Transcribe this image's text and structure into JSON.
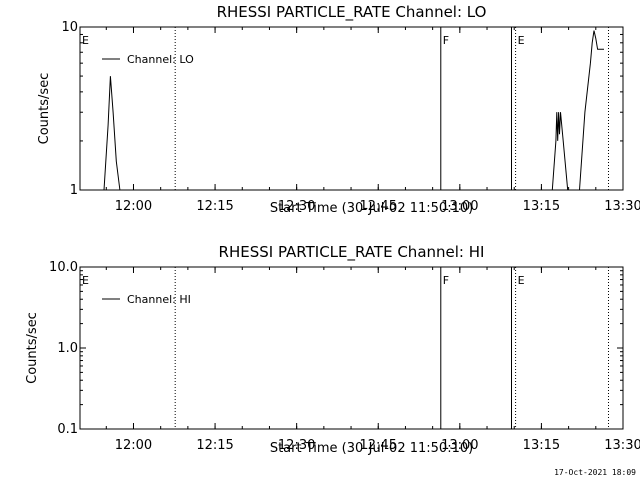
{
  "timestamp": "17-Oct-2021 18:09",
  "chart_data": [
    {
      "type": "line",
      "title": "RHESSI PARTICLE_RATE Channel: LO",
      "xlabel": "Start Time (30-Jul-02 11:50:10)",
      "ylabel": "Counts/sec",
      "yscale": "log",
      "ylim": [
        1,
        10
      ],
      "ytick_values": [
        1,
        10
      ],
      "ytick_labels": [
        "1",
        "10"
      ],
      "xlim": [
        "11:50:10",
        "13:30:00"
      ],
      "xtick_labels": [
        "12:00",
        "12:15",
        "12:30",
        "12:45",
        "13:00",
        "13:15",
        "13:30"
      ],
      "legend": "top-left",
      "series": [
        {
          "name": "Channel: LO",
          "x": [
            "11:54:35",
            "11:55:20",
            "11:55:45",
            "11:56:15",
            "11:56:50",
            "11:57:30",
            "13:17:00",
            "13:17:40",
            "13:17:50",
            "13:18:00",
            "13:18:10",
            "13:18:20",
            "13:18:30",
            "13:19:00",
            "13:19:50",
            "13:22:00",
            "13:23:00",
            "13:24:00",
            "13:24:20",
            "13:24:40",
            "13:25:00",
            "13:25:20",
            "13:26:30"
          ],
          "y": [
            1.0,
            2.5,
            5.0,
            3.0,
            1.5,
            1.0,
            1.0,
            2.0,
            3.0,
            2.0,
            3.0,
            2.2,
            3.0,
            2.0,
            1.0,
            1.0,
            3.0,
            6.0,
            8.0,
            9.5,
            8.5,
            7.3,
            7.3
          ]
        }
      ],
      "markers": [
        {
          "label": "E",
          "time": "11:50:10",
          "style": "dotted"
        },
        {
          "label": "",
          "time": "12:07:40",
          "style": "dotted"
        },
        {
          "label": "F",
          "time": "12:56:30",
          "style": "solid"
        },
        {
          "label": "",
          "time": "13:09:30",
          "style": "solid"
        },
        {
          "label": "E",
          "time": "13:10:15",
          "style": "dotted"
        },
        {
          "label": "",
          "time": "13:27:20",
          "style": "dotted"
        }
      ]
    },
    {
      "type": "line",
      "title": "RHESSI PARTICLE_RATE Channel: HI",
      "xlabel": "Start Time (30-Jul-02 11:50:10)",
      "ylabel": "Counts/sec",
      "yscale": "log",
      "ylim": [
        0.1,
        10
      ],
      "ytick_values": [
        0.1,
        1,
        10
      ],
      "ytick_labels": [
        "0.1",
        "1.0",
        "10.0"
      ],
      "xlim": [
        "11:50:10",
        "13:30:00"
      ],
      "xtick_labels": [
        "12:00",
        "12:15",
        "12:30",
        "12:45",
        "13:00",
        "13:15",
        "13:30"
      ],
      "legend": "top-left",
      "series": [
        {
          "name": "Channel: HI",
          "x": [],
          "y": []
        }
      ],
      "markers": [
        {
          "label": "E",
          "time": "11:50:10",
          "style": "dotted"
        },
        {
          "label": "",
          "time": "12:07:40",
          "style": "dotted"
        },
        {
          "label": "F",
          "time": "12:56:30",
          "style": "solid"
        },
        {
          "label": "",
          "time": "13:09:30",
          "style": "solid"
        },
        {
          "label": "E",
          "time": "13:10:15",
          "style": "dotted"
        },
        {
          "label": "",
          "time": "13:27:20",
          "style": "dotted"
        }
      ]
    }
  ]
}
